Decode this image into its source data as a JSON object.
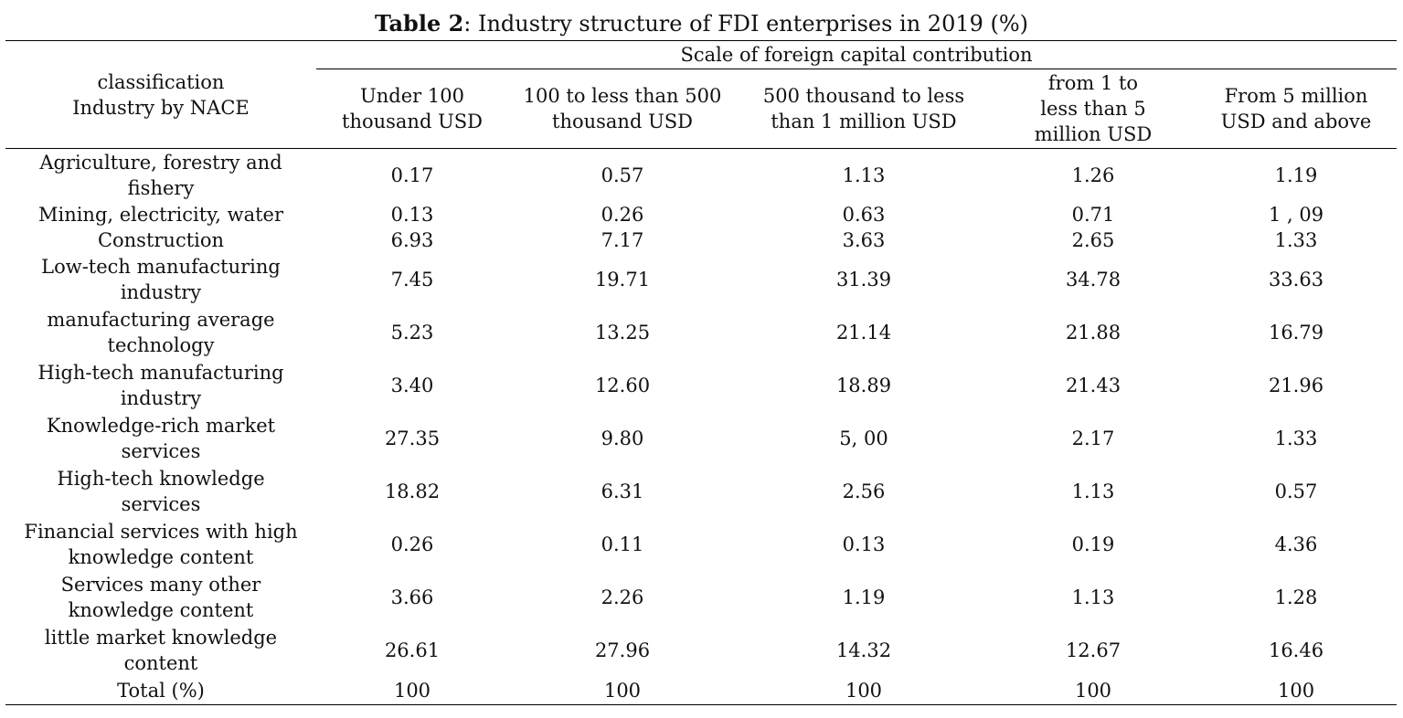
{
  "title": {
    "label": "Table 2",
    "text": ": Industry structure of FDI enterprises in 2019 (%)"
  },
  "header": {
    "classification_line1": "classification",
    "classification_line2": "Industry by NACE",
    "scale": "Scale of foreign capital contribution",
    "columns": [
      "Under 100 thousand USD",
      "100 to less than 500 thousand USD",
      "500 thousand to less than 1 million USD",
      "from 1 to less than 5 million USD",
      "From 5 million USD and above"
    ]
  },
  "rows": [
    {
      "label": "Agriculture, forestry and fishery",
      "values": [
        "0.17",
        "0.57",
        "1.13",
        "1.26",
        "1.19"
      ]
    },
    {
      "label": "Mining, electricity, water",
      "values": [
        "0.13",
        "0.26",
        "0.63",
        "0.71",
        "1 , 09"
      ]
    },
    {
      "label": "Construction",
      "values": [
        "6.93",
        "7.17",
        "3.63",
        "2.65",
        "1.33"
      ]
    },
    {
      "label": "Low-tech manufacturing industry",
      "values": [
        "7.45",
        "19.71",
        "31.39",
        "34.78",
        "33.63"
      ]
    },
    {
      "label": "manufacturing average technology",
      "values": [
        "5.23",
        "13.25",
        "21.14",
        "21.88",
        "16.79"
      ]
    },
    {
      "label": "High-tech manufacturing industry",
      "values": [
        "3.40",
        "12.60",
        "18.89",
        "21.43",
        "21.96"
      ]
    },
    {
      "label": "Knowledge-rich market services",
      "values": [
        "27.35",
        "9.80",
        "5, 00",
        "2.17",
        "1.33"
      ]
    },
    {
      "label": "High-tech knowledge services",
      "values": [
        "18.82",
        "6.31",
        "2.56",
        "1.13",
        "0.57"
      ]
    },
    {
      "label": "Financial services with high knowledge content",
      "values": [
        "0.26",
        "0.11",
        "0.13",
        "0.19",
        "4.36"
      ]
    },
    {
      "label": "Services many other knowledge content",
      "values": [
        "3.66",
        "2.26",
        "1.19",
        "1.13",
        "1.28"
      ]
    },
    {
      "label": "little market knowledge content",
      "values": [
        "26.61",
        "27.96",
        "14.32",
        "12.67",
        "16.46"
      ]
    },
    {
      "label": "Total (%)",
      "values": [
        "100",
        "100",
        "100",
        "100",
        "100"
      ]
    }
  ]
}
